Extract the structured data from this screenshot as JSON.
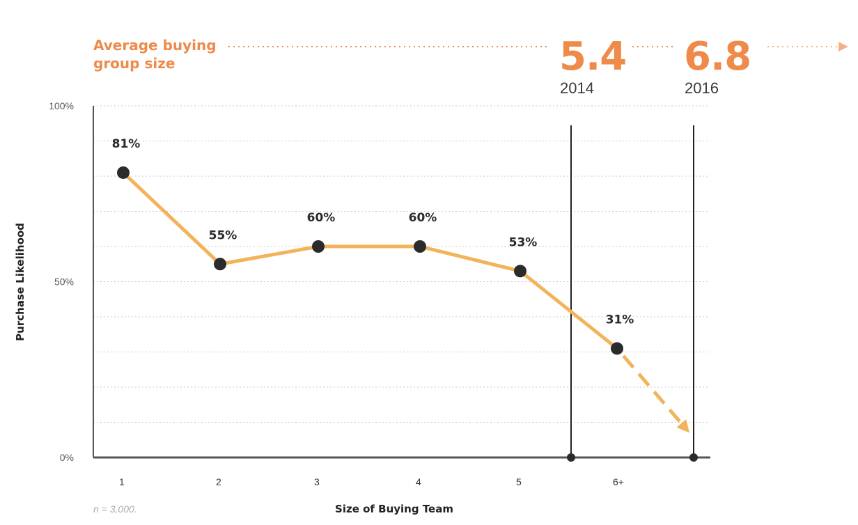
{
  "header": {
    "label_line1": "Average buying",
    "label_line2": "group size",
    "markers": [
      {
        "value": "5.4",
        "year": "2014"
      },
      {
        "value": "6.8",
        "year": "2016"
      }
    ]
  },
  "note": "n = 3,000.",
  "colors": {
    "accent": "#EE8A4A",
    "line": "#F2B35A",
    "point": "#2b2b2b",
    "grid": "#c9c9c9",
    "axis": "#555555"
  },
  "chart_data": {
    "type": "line",
    "xlabel": "Size of Buying Team",
    "ylabel": "Purchase Likelihood",
    "categories": [
      "1",
      "2",
      "3",
      "4",
      "5",
      "6+"
    ],
    "values": [
      81,
      55,
      60,
      60,
      53,
      31
    ],
    "data_labels": [
      "81%",
      "55%",
      "60%",
      "60%",
      "53%",
      "31%"
    ],
    "projection": {
      "style": "dashed-arrow",
      "from_category": "6+",
      "to_value": 7
    },
    "ylim": [
      0,
      100
    ],
    "yticks": [
      "0%",
      "50%",
      "100%"
    ],
    "grid": true,
    "reference_lines": [
      "2014",
      "2016"
    ]
  }
}
